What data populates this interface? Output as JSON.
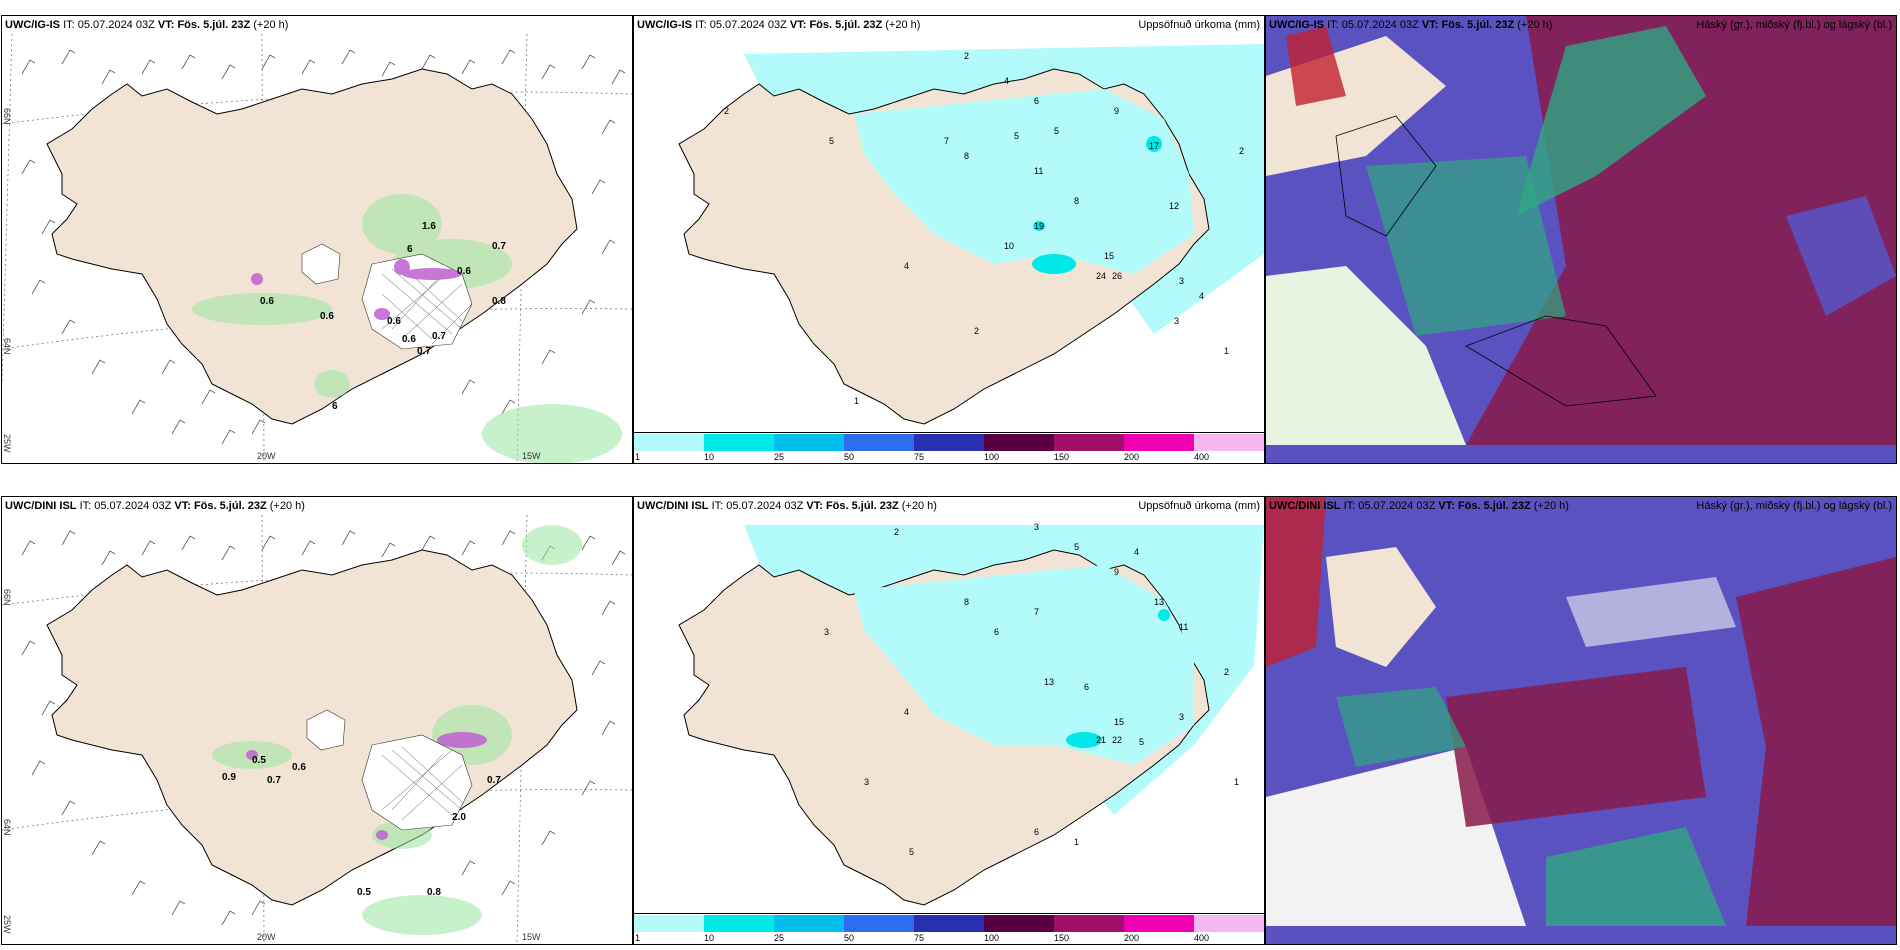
{
  "panels": {
    "p1": {
      "model": "UWC/IG-IS",
      "it_label": "IT:",
      "it": "05.07.2024 03Z",
      "vt_label": "VT:",
      "vt": "Fös. 5.júl. 23Z",
      "lead": "(+20 h)",
      "right_title": ""
    },
    "p2": {
      "model": "UWC/IG-IS",
      "it_label": "IT:",
      "it": "05.07.2024 03Z",
      "vt_label": "VT:",
      "vt": "Fös. 5.júl. 23Z",
      "lead": "(+20 h)",
      "right_title": "Uppsöfnuð úrkoma (mm)"
    },
    "p3": {
      "model": "UWC/IG-IS",
      "it_label": "IT:",
      "it": "05.07.2024 03Z",
      "vt_label": "VT:",
      "vt": "Fös. 5.júl. 23Z",
      "lead": "(+20 h)",
      "right_title": "Háský (gr.), miðský (fj.bl.) og lágský (bl.)"
    },
    "p4": {
      "model": "UWC/DINI ISL",
      "it_label": "IT:",
      "it": "05.07.2024 03Z",
      "vt_label": "VT:",
      "vt": "Fös. 5.júl. 23Z",
      "lead": "(+20 h)",
      "right_title": ""
    },
    "p5": {
      "model": "UWC/DINI ISL",
      "it_label": "IT:",
      "it": "05.07.2024 03Z",
      "vt_label": "VT:",
      "vt": "Fös. 5.júl. 23Z",
      "lead": "(+20 h)",
      "right_title": "Uppsöfnuð úrkoma (mm)"
    },
    "p6": {
      "model": "UWC/DINI ISL",
      "it_label": "IT:",
      "it": "05.07.2024 03Z",
      "vt_label": "VT:",
      "vt": "Fös. 5.júl. 23Z",
      "lead": "(+20 h)",
      "right_title": "Háský (gr.), miðský (fj.bl.) og lágský (bl.)"
    }
  },
  "axes": {
    "lon_20": "20W",
    "lon_15": "15W",
    "lat_66": "66N",
    "lat_64": "64N",
    "lat_25": "25W"
  },
  "colorbar": {
    "labels": [
      "1",
      "10",
      "25",
      "50",
      "75",
      "100",
      "150",
      "200",
      "400"
    ],
    "colors": [
      "#b3fafa",
      "#00e8e8",
      "#00bfe8",
      "#2e6cf0",
      "#2830b0",
      "#5a0040",
      "#a0106a",
      "#f000b0",
      "#f5b8f0"
    ]
  },
  "precip_top": [
    {
      "v": "2"
    },
    {
      "v": "4"
    },
    {
      "v": "6"
    },
    {
      "v": "5"
    },
    {
      "v": "9"
    },
    {
      "v": "17"
    },
    {
      "v": "7"
    },
    {
      "v": "8"
    },
    {
      "v": "5"
    },
    {
      "v": "11"
    },
    {
      "v": "8"
    },
    {
      "v": "19"
    },
    {
      "v": "10"
    },
    {
      "v": "15"
    },
    {
      "v": "24"
    },
    {
      "v": "26"
    },
    {
      "v": "12"
    },
    {
      "v": "3"
    },
    {
      "v": "4"
    },
    {
      "v": "2"
    },
    {
      "v": "1"
    },
    {
      "v": "3"
    },
    {
      "v": "2"
    },
    {
      "v": "4"
    },
    {
      "v": "2"
    },
    {
      "v": "1"
    },
    {
      "v": "5"
    }
  ],
  "precip_bottom": [
    {
      "v": "2"
    },
    {
      "v": "3"
    },
    {
      "v": "5"
    },
    {
      "v": "4"
    },
    {
      "v": "8"
    },
    {
      "v": "7"
    },
    {
      "v": "6"
    },
    {
      "v": "9"
    },
    {
      "v": "13"
    },
    {
      "v": "11"
    },
    {
      "v": "13"
    },
    {
      "v": "6"
    },
    {
      "v": "15"
    },
    {
      "v": "21"
    },
    {
      "v": "22"
    },
    {
      "v": "5"
    },
    {
      "v": "3"
    },
    {
      "v": "2"
    },
    {
      "v": "4"
    },
    {
      "v": "1"
    },
    {
      "v": "3"
    },
    {
      "v": "5"
    },
    {
      "v": "6"
    },
    {
      "v": "1"
    },
    {
      "v": "3"
    }
  ],
  "hail_top": [
    {
      "v": "1.6"
    },
    {
      "v": "0.7"
    },
    {
      "v": "6"
    },
    {
      "v": "0.6"
    },
    {
      "v": "0.6"
    },
    {
      "v": "0.6"
    },
    {
      "v": "0.8"
    },
    {
      "v": "0.6"
    },
    {
      "v": "0.7"
    },
    {
      "v": "0.7"
    },
    {
      "v": "0.6"
    },
    {
      "v": "6"
    }
  ],
  "hail_bottom": [
    {
      "v": "0.9"
    },
    {
      "v": "0.5"
    },
    {
      "v": "0.7"
    },
    {
      "v": "0.6"
    },
    {
      "v": "0.7"
    },
    {
      "v": "2.0"
    },
    {
      "v": "0.5"
    },
    {
      "v": "0.8"
    }
  ]
}
